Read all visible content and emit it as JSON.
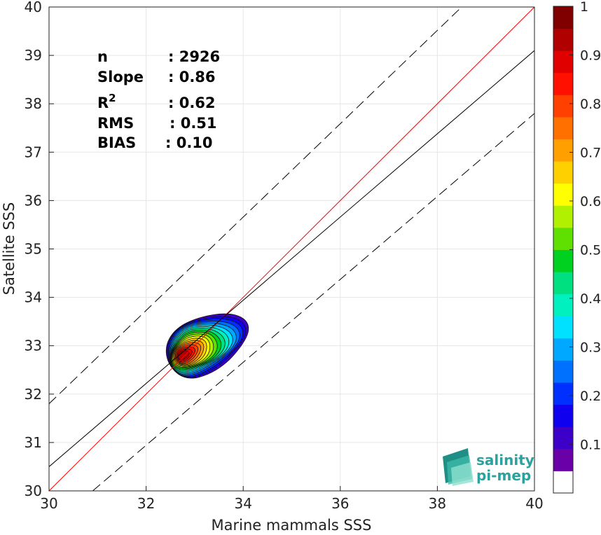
{
  "chart_data": {
    "type": "heatmap",
    "subtype": "density-contour-scatter",
    "xlabel": "Marine mammals SSS",
    "ylabel": "Satellite SSS",
    "xlim": [
      30,
      40
    ],
    "ylim": [
      30,
      40
    ],
    "xticks": [
      30,
      32,
      34,
      36,
      38,
      40
    ],
    "yticks": [
      30,
      31,
      32,
      33,
      34,
      35,
      36,
      37,
      38,
      39,
      40
    ],
    "grid": true,
    "stats": [
      {
        "label": "n",
        "value": ": 2926"
      },
      {
        "label": "Slope",
        "value": ": 0.86"
      },
      {
        "label": "R",
        "sup": "2",
        "value": ": 0.62"
      },
      {
        "label": "RMS",
        "value": ": 0.51"
      },
      {
        "label": "BIAS",
        "value": ": 0.10"
      }
    ],
    "lines": [
      {
        "kind": "identity",
        "color": "#ff0000",
        "points": [
          [
            30,
            30
          ],
          [
            40,
            40
          ]
        ]
      },
      {
        "kind": "regression",
        "color": "#000000",
        "points": [
          [
            30,
            30.5
          ],
          [
            40,
            39.1
          ]
        ]
      },
      {
        "kind": "upper-bound",
        "color": "#000000",
        "dashed": true,
        "points": [
          [
            30,
            31.8
          ],
          [
            38.5,
            40
          ]
        ]
      },
      {
        "kind": "lower-bound",
        "color": "#000000",
        "dashed": true,
        "points": [
          [
            30.9,
            30
          ],
          [
            40,
            37.8
          ]
        ]
      }
    ],
    "density_peak": {
      "x": 32.75,
      "y": 32.8,
      "normalized_density": 1.0
    },
    "contour_levels": [
      0.05,
      0.1,
      0.15,
      0.2,
      0.25,
      0.3,
      0.35,
      0.4,
      0.45,
      0.5,
      0.55,
      0.6,
      0.65,
      0.7,
      0.75,
      0.8,
      0.85,
      0.9,
      0.95
    ],
    "colorbar": {
      "range": [
        0,
        1
      ],
      "ticks": [
        "0.1",
        "0.2",
        "0.3",
        "0.4",
        "0.5",
        "0.6",
        "0.7",
        "0.8",
        "0.9",
        "1"
      ],
      "bottom_label_color": "#ffffff",
      "colors": [
        "#6a00a8",
        "#3c00c8",
        "#1000f0",
        "#0030ff",
        "#0070ff",
        "#00a8ff",
        "#00e0ff",
        "#00f0c0",
        "#00e080",
        "#00d020",
        "#60e000",
        "#b0f000",
        "#ffff00",
        "#ffd000",
        "#ffa000",
        "#ff7000",
        "#ff4000",
        "#ff1000",
        "#e00000",
        "#b00000",
        "#800000"
      ]
    }
  },
  "logo": {
    "line1": "salinity",
    "line2": "pi-mep"
  }
}
